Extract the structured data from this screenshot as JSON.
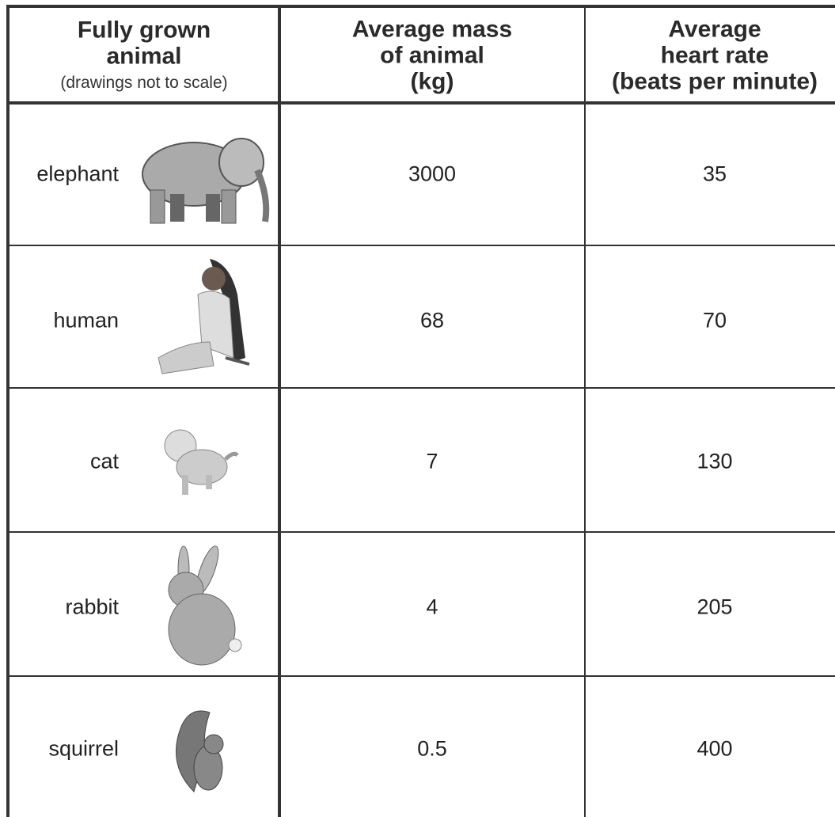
{
  "table": {
    "headers": [
      {
        "lines": [
          "Fully grown",
          "animal"
        ],
        "note": "(drawings not to scale)"
      },
      {
        "lines": [
          "Average mass",
          "of animal",
          "(kg)"
        ]
      },
      {
        "lines": [
          "Average",
          "heart rate",
          "(beats per minute)"
        ]
      }
    ],
    "rows": [
      [
        "elephant",
        3000,
        35
      ],
      [
        "human",
        68,
        70
      ],
      [
        "cat",
        7,
        130
      ],
      [
        "rabbit",
        4,
        205
      ],
      [
        "squirrel",
        0.5,
        400
      ]
    ]
  }
}
